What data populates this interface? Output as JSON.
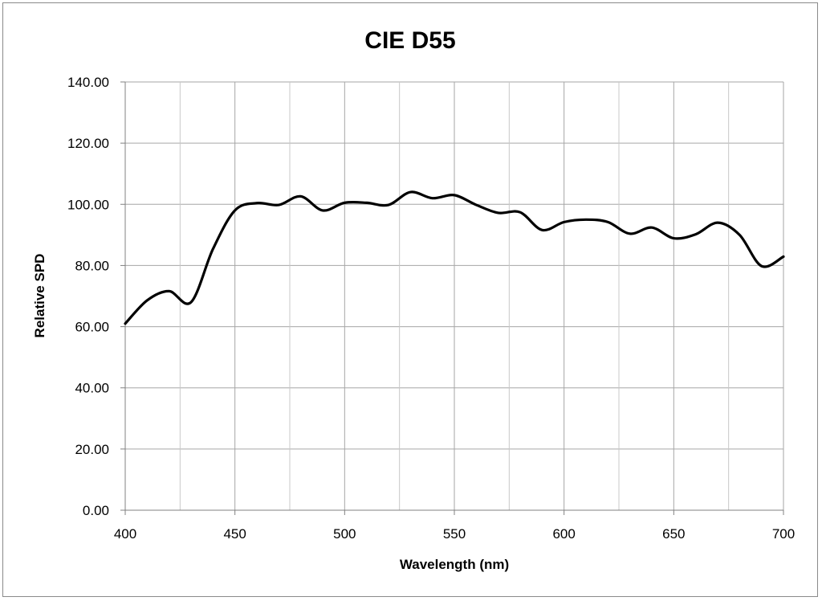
{
  "chart_data": {
    "type": "line",
    "title": "CIE D55",
    "xlabel": "Wavelength (nm)",
    "ylabel": "Relative SPD",
    "xlim": [
      400,
      700
    ],
    "ylim": [
      0,
      140
    ],
    "x_ticks": [
      400,
      450,
      500,
      550,
      600,
      650,
      700
    ],
    "x_tick_labels": [
      "400",
      "450",
      "500",
      "550",
      "600",
      "650",
      "700"
    ],
    "x_minor_gridlines": [
      425,
      475,
      525,
      575,
      625,
      675
    ],
    "y_ticks": [
      0,
      20,
      40,
      60,
      80,
      100,
      120,
      140
    ],
    "y_tick_labels": [
      "0.00",
      "20.00",
      "40.00",
      "60.00",
      "80.00",
      "100.00",
      "120.00",
      "140.00"
    ],
    "grid": true,
    "legend": "none",
    "series": [
      {
        "color": "#000000",
        "x": [
          400,
          410,
          420,
          430,
          440,
          450,
          460,
          470,
          480,
          490,
          500,
          510,
          520,
          530,
          540,
          550,
          560,
          570,
          580,
          590,
          600,
          610,
          620,
          630,
          640,
          650,
          660,
          670,
          680,
          690,
          700
        ],
        "y": [
          61.0,
          68.6,
          71.6,
          68.0,
          85.4,
          98.0,
          100.4,
          99.8,
          102.6,
          98.0,
          100.5,
          100.5,
          99.8,
          104.0,
          102.0,
          103.0,
          99.8,
          97.2,
          97.4,
          91.6,
          94.2,
          95.0,
          94.2,
          90.4,
          92.4,
          88.9,
          90.2,
          94.0,
          90.0,
          79.8,
          82.9
        ]
      }
    ]
  }
}
